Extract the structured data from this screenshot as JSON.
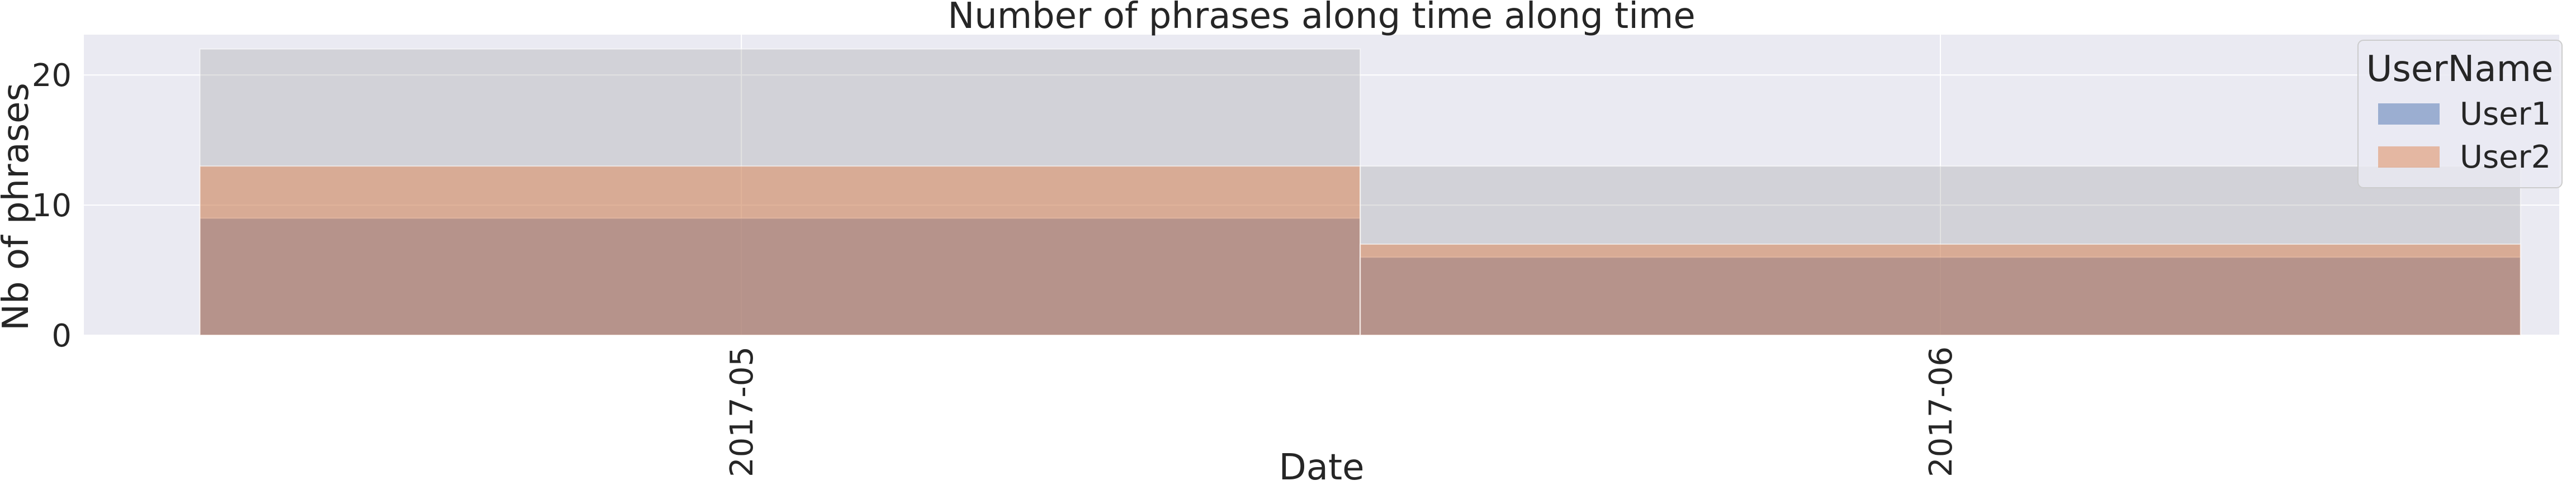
{
  "chart_data": {
    "type": "bar",
    "stacked": "overlay-histogram",
    "title": "Number of phrases along time along time",
    "xlabel": "Date",
    "ylabel": "Nb of phrases",
    "x_tick_labels": [
      "2017-05",
      "2017-06"
    ],
    "y_ticks": [
      0,
      10,
      20
    ],
    "ylim": [
      0,
      23.1
    ],
    "bins": [
      {
        "start": "2017-05-01",
        "end": "2017-05-31"
      },
      {
        "start": "2017-05-31",
        "end": "2017-06-30"
      }
    ],
    "x_ticks_dates": [
      "2017-05-15",
      "2017-06-15"
    ],
    "x_range": [
      "2017-04-28",
      "2017-07-01"
    ],
    "legend": {
      "title": "UserName",
      "position": "top-right"
    },
    "series": [
      {
        "name": "User1",
        "color": "#4c72b0",
        "values": [
          9,
          6
        ]
      },
      {
        "name": "User2",
        "color": "#dd8452",
        "values": [
          13,
          7
        ]
      }
    ],
    "total_outline": {
      "values": [
        22,
        13
      ],
      "color": "#8c8c8c"
    },
    "grid": true,
    "background": "#eaeaf2"
  }
}
